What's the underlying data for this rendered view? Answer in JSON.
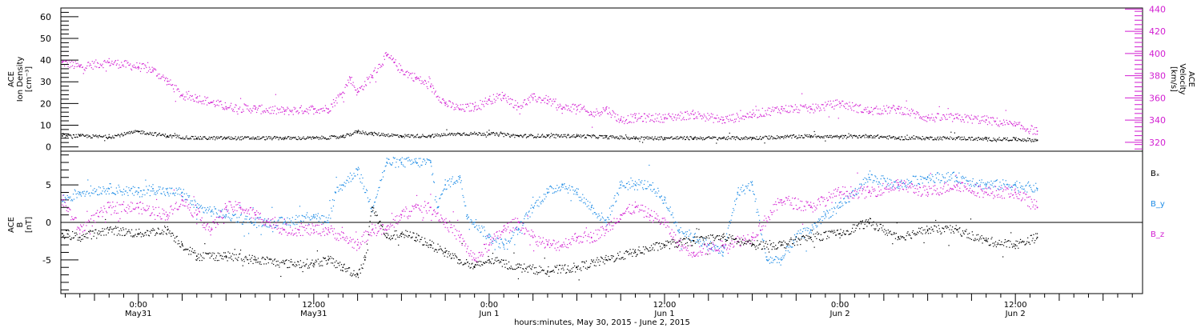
{
  "chart_data": [
    {
      "type": "scatter",
      "panel": "top",
      "ylabel_left": [
        "ACE",
        "Ion Density",
        "[cm⁻³]"
      ],
      "ylabel_right": [
        "ACE",
        "Velocity",
        "[km/s]"
      ],
      "y_left_range": [
        -2,
        64
      ],
      "y_left_ticks": [
        "0",
        "10",
        "20",
        "30",
        "40",
        "50",
        "60"
      ],
      "y_right_range": [
        312,
        441
      ],
      "y_right_ticks": [
        "320",
        "340",
        "360",
        "380",
        "400",
        "420",
        "440"
      ],
      "series": [
        {
          "axis": "left",
          "color": "#000000",
          "x": [
            -5.2,
            -4,
            -2,
            0,
            2,
            4,
            6,
            8,
            10,
            12,
            14,
            15,
            16,
            18,
            20,
            22,
            24,
            26,
            28,
            30,
            32,
            34,
            36,
            38,
            40,
            42,
            44,
            46,
            48,
            50,
            52,
            54,
            56,
            58,
            60,
            61.5
          ],
          "y": [
            5,
            5,
            4.5,
            7,
            5,
            4,
            4,
            4,
            4,
            4,
            4.5,
            7,
            6,
            5,
            5,
            6,
            6,
            5,
            5,
            5,
            4.5,
            4,
            4,
            4,
            4,
            4,
            4.5,
            5,
            4.5,
            5,
            4,
            4,
            4,
            3.5,
            3.5,
            3
          ]
        },
        {
          "axis": "right",
          "color": "#d21ed2",
          "x": [
            -5.2,
            -4,
            -2,
            0,
            1,
            2,
            3,
            4,
            5,
            6,
            8,
            10,
            12,
            13,
            14,
            14.5,
            15,
            16,
            17,
            17.5,
            18,
            19,
            20,
            21,
            22,
            23,
            24,
            25,
            26,
            27,
            28,
            29,
            30,
            31,
            32,
            33,
            34,
            36,
            38,
            40,
            42,
            44,
            46,
            48,
            50,
            52,
            54,
            56,
            58,
            60,
            61.5
          ],
          "y": [
            392,
            388,
            392,
            388,
            385,
            375,
            362,
            360,
            356,
            352,
            350,
            348,
            350,
            350,
            365,
            378,
            365,
            380,
            398,
            392,
            385,
            378,
            370,
            355,
            350,
            352,
            358,
            362,
            352,
            360,
            358,
            350,
            352,
            345,
            350,
            340,
            342,
            342,
            345,
            340,
            345,
            350,
            350,
            355,
            348,
            350,
            342,
            342,
            340,
            335,
            330
          ]
        }
      ]
    },
    {
      "type": "scatter",
      "panel": "bottom",
      "ylabel_left": [
        "ACE",
        "B",
        "[nT]"
      ],
      "y_range": [
        -9.5,
        9.5
      ],
      "y_ticks": [
        "-5",
        "0",
        "5"
      ],
      "legend_position": "right",
      "series": [
        {
          "name": "Bₓ",
          "color": "#000000",
          "x": [
            -5.2,
            -4,
            -2,
            0,
            2,
            3,
            4,
            6,
            8,
            10,
            12,
            13,
            14,
            15,
            15.5,
            16,
            17,
            18,
            19,
            20,
            21,
            22,
            23,
            24,
            26,
            28,
            30,
            32,
            34,
            36,
            38,
            40,
            42,
            44,
            46,
            48,
            50,
            52,
            54,
            56,
            58,
            60,
            61.5
          ],
          "y": [
            -1.5,
            -2,
            -1,
            -1.5,
            -1,
            -3,
            -4.5,
            -4.5,
            -5,
            -5.5,
            -5.5,
            -5,
            -6,
            -7,
            -5,
            2,
            -2,
            -1.5,
            -2,
            -3,
            -4,
            -5,
            -6,
            -5,
            -6,
            -6.5,
            -6,
            -5,
            -4,
            -3,
            -2.5,
            -2,
            -3,
            -3,
            -2,
            -1.5,
            0,
            -2,
            -1,
            -1,
            -2.5,
            -3,
            -2
          ]
        },
        {
          "name": "B_y",
          "color": "#1e8ce6",
          "x": [
            -5.2,
            -4,
            -2,
            0,
            1,
            2,
            3,
            4,
            5,
            6,
            8,
            10,
            12,
            13,
            13.5,
            14,
            15,
            16,
            17,
            18,
            19,
            20,
            20.5,
            21,
            22,
            22.5,
            23,
            24,
            25,
            26,
            27,
            28,
            29,
            30,
            31,
            32,
            33,
            34,
            35,
            36,
            37,
            38,
            39,
            40,
            41,
            42,
            43,
            44,
            45,
            46,
            47,
            48,
            50,
            52,
            54,
            56,
            58,
            60,
            61.5
          ],
          "y": [
            3,
            4,
            4.5,
            4,
            4.5,
            4,
            4,
            2,
            1.5,
            1,
            0,
            0,
            1,
            0,
            4,
            5,
            7,
            2,
            8,
            8,
            8,
            8,
            2,
            5,
            6,
            1,
            0,
            -2,
            -3,
            -1,
            2,
            4,
            5,
            4,
            2,
            0,
            5,
            5,
            5,
            3,
            -1,
            -2,
            -3,
            -4,
            4,
            5,
            -5,
            -5,
            -2,
            -1,
            1,
            2,
            6,
            5,
            6,
            6,
            5,
            5,
            4.5
          ]
        },
        {
          "name": "B_z",
          "color": "#d21ed2",
          "x": [
            -5.2,
            -4,
            -2,
            0,
            2,
            3,
            4,
            5,
            6,
            7,
            8,
            9,
            10,
            11,
            12,
            13,
            14,
            15,
            16,
            17,
            18,
            19,
            20,
            21,
            22,
            23,
            24,
            25,
            26,
            27,
            28,
            29,
            30,
            31,
            32,
            33,
            34,
            35,
            36,
            37,
            38,
            40,
            42,
            44,
            46,
            48,
            50,
            52,
            54,
            56,
            58,
            60,
            61.5
          ],
          "y": [
            3,
            -1,
            2,
            2,
            1,
            3,
            1,
            -1,
            2,
            2,
            1,
            0,
            -1,
            -1,
            -1,
            -1,
            -2,
            -3,
            -1,
            -1,
            1,
            2,
            2,
            0,
            -2,
            -5,
            -3,
            -1,
            0,
            -2,
            -3,
            -3,
            -2,
            -2,
            -1,
            1,
            2,
            1,
            0,
            -3,
            -4,
            -3,
            -2,
            3,
            2,
            4,
            4,
            5,
            4,
            5,
            4,
            4,
            2
          ]
        }
      ]
    }
  ],
  "x_axis": {
    "range": [
      -5.3,
      68.7
    ],
    "xlabel": "hours:minutes, May 30, 2015 - June  2, 2015",
    "major_ticks": [
      {
        "x": 0,
        "time": "0:00",
        "date": "May31"
      },
      {
        "x": 12,
        "time": "12:00",
        "date": "May31"
      },
      {
        "x": 24,
        "time": "0:00",
        "date": "Jun 1"
      },
      {
        "x": 36,
        "time": "12:00",
        "date": "Jun 1"
      },
      {
        "x": 48,
        "time": "0:00",
        "date": "Jun 2"
      },
      {
        "x": 60,
        "time": "12:00",
        "date": "Jun 2"
      }
    ]
  }
}
